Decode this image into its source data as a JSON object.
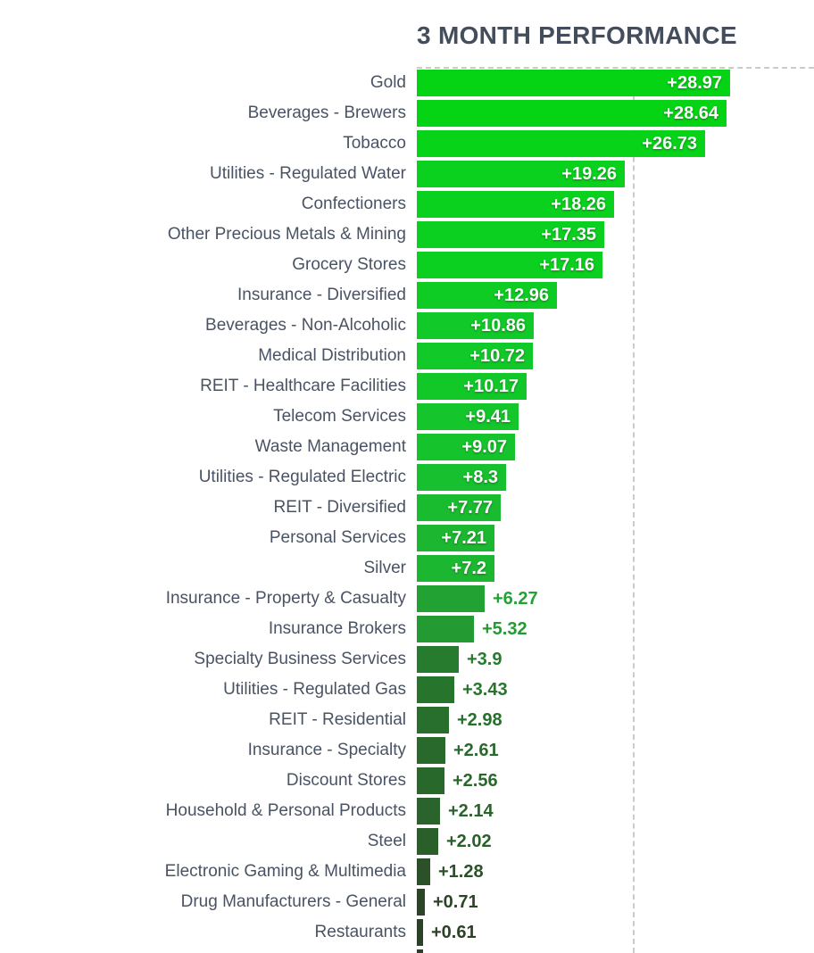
{
  "title": "3 MONTH PERFORMANCE",
  "chart_data": {
    "type": "bar",
    "orientation": "horizontal",
    "title": "3 MONTH PERFORMANCE",
    "xlabel": "",
    "ylabel": "",
    "xlim": [
      0,
      36.8
    ],
    "gridlines_x": [
      20
    ],
    "grid_style": "dashed",
    "legend": "none",
    "categories": [
      "Gold",
      "Beverages - Brewers",
      "Tobacco",
      "Utilities - Regulated Water",
      "Confectioners",
      "Other Precious Metals & Mining",
      "Grocery Stores",
      "Insurance - Diversified",
      "Beverages - Non-Alcoholic",
      "Medical Distribution",
      "REIT - Healthcare Facilities",
      "Telecom Services",
      "Waste Management",
      "Utilities - Regulated Electric",
      "REIT - Diversified",
      "Personal Services",
      "Silver",
      "Insurance - Property & Casualty",
      "Insurance Brokers",
      "Specialty Business Services",
      "Utilities - Regulated Gas",
      "REIT - Residential",
      "Insurance - Specialty",
      "Discount Stores",
      "Household & Personal Products",
      "Steel",
      "Electronic Gaming & Multimedia",
      "Drug Manufacturers - General",
      "Restaurants"
    ],
    "values": [
      28.97,
      28.64,
      26.73,
      19.26,
      18.26,
      17.35,
      17.16,
      12.96,
      10.86,
      10.72,
      10.17,
      9.41,
      9.07,
      8.3,
      7.77,
      7.21,
      7.2,
      6.27,
      5.32,
      3.9,
      3.43,
      2.98,
      2.61,
      2.56,
      2.14,
      2.02,
      1.28,
      0.71,
      0.61
    ],
    "value_labels": [
      "+28.97",
      "+28.64",
      "+26.73",
      "+19.26",
      "+18.26",
      "+17.35",
      "+17.16",
      "+12.96",
      "+10.86",
      "+10.72",
      "+10.17",
      "+9.41",
      "+9.07",
      "+8.3",
      "+7.77",
      "+7.21",
      "+7.2",
      "+6.27",
      "+5.32",
      "+3.9",
      "+3.43",
      "+2.98",
      "+2.61",
      "+2.56",
      "+2.14",
      "+2.02",
      "+1.28",
      "+0.71",
      "+0.61"
    ],
    "value_label_inside": [
      true,
      true,
      true,
      true,
      true,
      true,
      true,
      true,
      true,
      true,
      true,
      true,
      true,
      true,
      true,
      true,
      true,
      false,
      false,
      false,
      false,
      false,
      false,
      false,
      false,
      false,
      false,
      false,
      false
    ],
    "bar_colors": [
      "#05d414",
      "#05d415",
      "#07d318",
      "#09d11d",
      "#0ad11e",
      "#0bd01f",
      "#0bd01f",
      "#0ecc24",
      "#11c928",
      "#11c928",
      "#12c829",
      "#14c52b",
      "#15c42c",
      "#17c02e",
      "#19bc2f",
      "#1cb731",
      "#1cb731",
      "#22a233",
      "#239a32",
      "#267b2e",
      "#27752d",
      "#286e2c",
      "#29692c",
      "#29682b",
      "#2a632b",
      "#2a5f2a",
      "#2b5128",
      "#2c4527",
      "#2c4226"
    ],
    "clipped_partial_bar": {
      "color": "#2c4026",
      "value_estimate": 0.6,
      "note": "next bar cut off at bottom edge of screenshot"
    }
  },
  "style_colors": {
    "title_text": "#444d5c",
    "label_text": "#4a5363",
    "inside_value_text": "#ffffff",
    "grid_dash": "#cbcbcb",
    "background": "#ffffff"
  }
}
